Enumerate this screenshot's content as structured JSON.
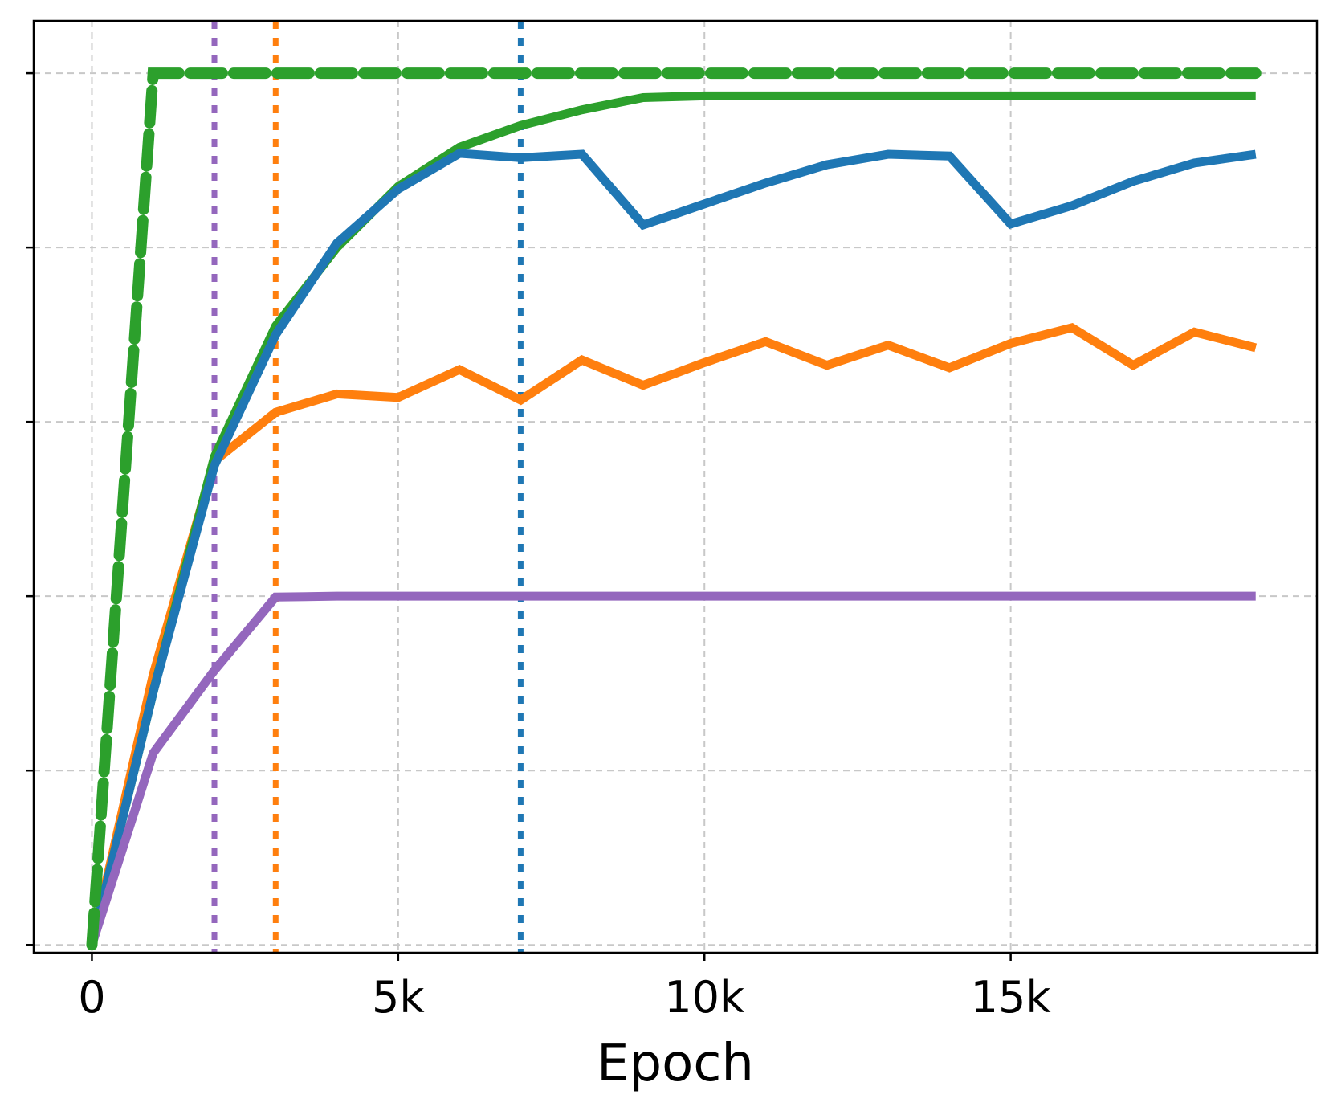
{
  "chart_data": {
    "type": "line",
    "title": "",
    "xlabel": "Epoch",
    "ylabel": "",
    "xlim": [
      -950,
      20000
    ],
    "ylim": [
      -0.009,
      1.06
    ],
    "x_ticks": [
      {
        "value": 0,
        "label": "0"
      },
      {
        "value": 5000,
        "label": "5k"
      },
      {
        "value": 10000,
        "label": "10k"
      },
      {
        "value": 15000,
        "label": "15k"
      }
    ],
    "y_ticks": [
      0,
      0.2,
      0.4,
      0.6,
      0.8,
      1.0
    ],
    "y_tick_labels_shown": false,
    "grid": true,
    "legend": "none",
    "x": [
      0,
      1000,
      2000,
      3000,
      4000,
      5000,
      6000,
      7000,
      8000,
      9000,
      10000,
      11000,
      12000,
      13000,
      14000,
      15000,
      16000,
      17000,
      18000,
      19000
    ],
    "series": [
      {
        "color": "#2ca02c",
        "style": "solid",
        "values": [
          0.0,
          0.29,
          0.56,
          0.71,
          0.8,
          0.87,
          0.915,
          0.94,
          0.958,
          0.972,
          0.974,
          0.974,
          0.974,
          0.974,
          0.974,
          0.974,
          0.974,
          0.974,
          0.974,
          0.974
        ]
      },
      {
        "color": "#1f77b4",
        "style": "solid",
        "values": [
          0.0,
          0.29,
          0.55,
          0.7,
          0.805,
          0.867,
          0.908,
          0.903,
          0.907,
          0.826,
          0.85,
          0.874,
          0.895,
          0.907,
          0.905,
          0.827,
          0.848,
          0.876,
          0.897,
          0.907
        ]
      },
      {
        "color": "#ff7f0e",
        "style": "solid",
        "values": [
          0.0,
          0.31,
          0.555,
          0.611,
          0.632,
          0.628,
          0.66,
          0.625,
          0.671,
          0.642,
          0.668,
          0.692,
          0.665,
          0.688,
          0.662,
          0.69,
          0.708,
          0.665,
          0.703,
          0.685
        ]
      },
      {
        "color": "#9467bd",
        "style": "solid",
        "values": [
          0.0,
          0.22,
          0.315,
          0.399,
          0.4,
          0.4,
          0.4,
          0.4,
          0.4,
          0.4,
          0.4,
          0.4,
          0.4,
          0.4,
          0.4,
          0.4,
          0.4,
          0.4,
          0.4,
          0.4
        ]
      }
    ],
    "dashed_series": [
      {
        "color": "#2ca02c",
        "style": "dashed",
        "x": [
          0,
          1000,
          2000,
          19000
        ],
        "values": [
          0.0,
          1.0,
          1.0,
          1.0
        ]
      }
    ],
    "vertical_lines": [
      {
        "x": 2000,
        "color": "#9467bd",
        "style": "dotted"
      },
      {
        "x": 3000,
        "color": "#ff7f0e",
        "style": "dotted"
      },
      {
        "x": 7000,
        "color": "#1f77b4",
        "style": "dotted"
      }
    ]
  }
}
